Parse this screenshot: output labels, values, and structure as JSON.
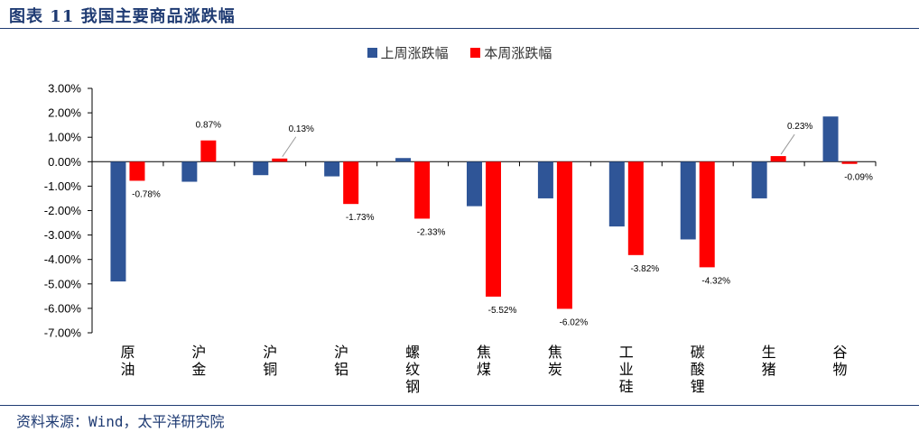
{
  "header": {
    "title": "图表 11 我国主要商品涨跌幅"
  },
  "footer": {
    "source": "资料来源：Wind，太平洋研究院"
  },
  "colors": {
    "last_week": "#2f5597",
    "this_week": "#ff0000",
    "rule": "#1f3b73"
  },
  "chart_data": {
    "type": "bar",
    "title": "",
    "xlabel": "",
    "ylabel": "",
    "ylim": [
      -7,
      3
    ],
    "yticks": [
      "3.00%",
      "2.00%",
      "1.00%",
      "0.00%",
      "-1.00%",
      "-2.00%",
      "-3.00%",
      "-4.00%",
      "-5.00%",
      "-6.00%",
      "-7.00%"
    ],
    "ytick_values": [
      3,
      2,
      1,
      0,
      -1,
      -2,
      -3,
      -4,
      -5,
      -6,
      -7
    ],
    "legend_position": "top-center",
    "categories": [
      "原油",
      "沪金",
      "沪铜",
      "沪铝",
      "螺纹钢",
      "焦煤",
      "焦炭",
      "工业硅",
      "碳酸锂",
      "生猪",
      "谷物"
    ],
    "series": [
      {
        "name": "上周涨跌幅",
        "values": [
          -4.9,
          -0.82,
          -0.55,
          -0.6,
          0.15,
          -1.82,
          -1.5,
          -2.65,
          -3.18,
          -1.5,
          1.85
        ]
      },
      {
        "name": "本周涨跌幅",
        "values": [
          -0.78,
          0.87,
          0.13,
          -1.73,
          -2.33,
          -5.52,
          -6.02,
          -3.82,
          -4.32,
          0.23,
          -0.09
        ]
      }
    ],
    "data_labels": [
      "-0.78%",
      "0.87%",
      "0.13%",
      "-1.73%",
      "-2.33%",
      "-5.52%",
      "-6.02%",
      "-3.82%",
      "-4.32%",
      "0.23%",
      "-0.09%"
    ]
  }
}
